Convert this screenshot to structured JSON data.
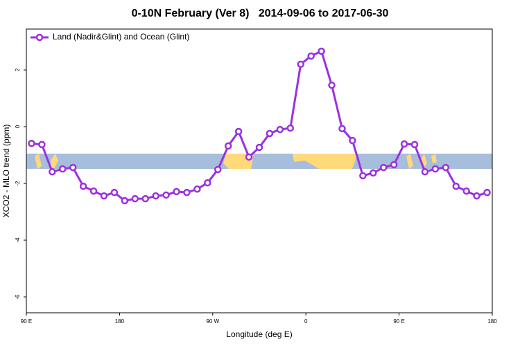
{
  "chart_data": {
    "type": "line",
    "title": "0-10N February (Ver 8)   2014-09-06 to 2017-06-30",
    "x_label": "Longitude (deg E)",
    "y_label": "XCO2 - MLO trend (ppm)",
    "xlim": [
      90,
      540
    ],
    "ylim": [
      -6.56,
      3.44
    ],
    "xticks": [
      {
        "value": 90,
        "label": "90 E"
      },
      180,
      {
        "value": 270,
        "label": "90 W"
      },
      {
        "value": 360,
        "label": "0"
      },
      {
        "value": 450,
        "label": "90 E"
      },
      {
        "value": 540,
        "label": "180"
      }
    ],
    "yticks": [
      -6,
      -4,
      -2,
      0,
      2
    ],
    "legend": "top-left",
    "x": [
      95,
      105,
      115,
      125,
      135,
      145,
      155,
      165,
      175,
      185,
      195,
      205,
      215,
      225,
      235,
      245,
      255,
      265,
      275,
      285,
      295,
      305,
      315,
      325,
      335,
      345,
      355,
      365,
      375,
      385,
      395,
      405,
      415,
      425,
      435,
      445,
      455,
      465,
      475,
      485,
      495,
      505,
      515,
      525,
      535
    ],
    "series": [
      {
        "name": "Land (Nadir&Glint) and Ocean (Glint)",
        "color": "#9b30e0",
        "values": [
          -0.59,
          -0.63,
          -1.59,
          -1.49,
          -1.44,
          -2.1,
          -2.27,
          -2.44,
          -2.32,
          -2.61,
          -2.54,
          -2.54,
          -2.44,
          -2.41,
          -2.29,
          -2.32,
          -2.2,
          -1.98,
          -1.51,
          -0.68,
          -0.17,
          -1.07,
          -0.73,
          -0.24,
          -0.1,
          -0.05,
          2.2,
          2.49,
          2.66,
          1.46,
          -0.07,
          -0.49,
          -1.73,
          -1.63,
          -1.44,
          -1.34,
          -0.61,
          -0.63,
          -1.59,
          -1.49,
          -1.44,
          -2.1,
          -2.27,
          -2.44,
          -2.32
        ]
      }
    ]
  }
}
